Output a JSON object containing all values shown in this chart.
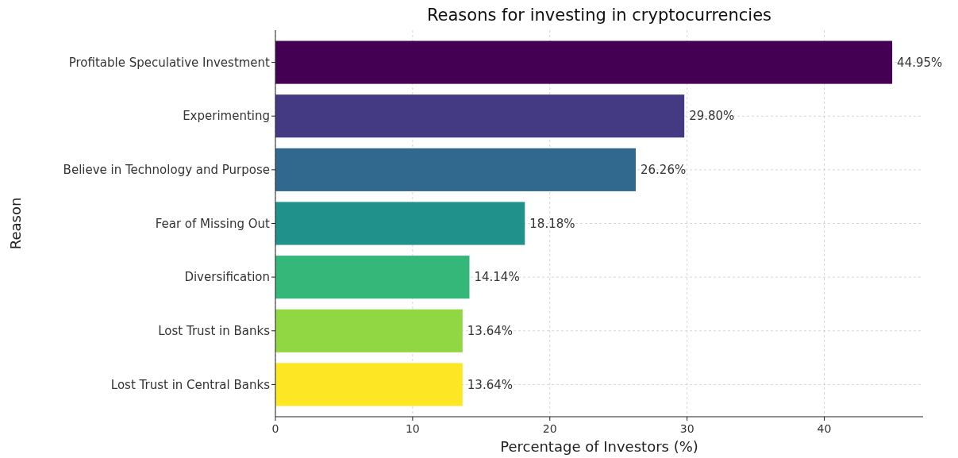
{
  "chart_data": {
    "type": "bar",
    "orientation": "horizontal",
    "title": "Reasons for investing in cryptocurrencies",
    "xlabel": "Percentage of Investors (%)",
    "ylabel": "Reason",
    "categories": [
      "Profitable Speculative Investment",
      "Experimenting",
      "Believe in Technology and Purpose",
      "Fear of Missing Out",
      "Diversification",
      "Lost Trust in Banks",
      "Lost Trust in Central Banks"
    ],
    "values": [
      44.95,
      29.8,
      26.26,
      18.18,
      14.14,
      13.64,
      13.64
    ],
    "value_labels": [
      "44.95%",
      "29.80%",
      "26.26%",
      "18.18%",
      "14.14%",
      "13.64%",
      "13.64%"
    ],
    "colors": [
      "#440154",
      "#443983",
      "#31688e",
      "#21918c",
      "#35b779",
      "#90d743",
      "#fde725"
    ],
    "xlim": [
      0,
      47.2
    ],
    "xticks": [
      0,
      10,
      20,
      30,
      40
    ],
    "grid": true
  }
}
